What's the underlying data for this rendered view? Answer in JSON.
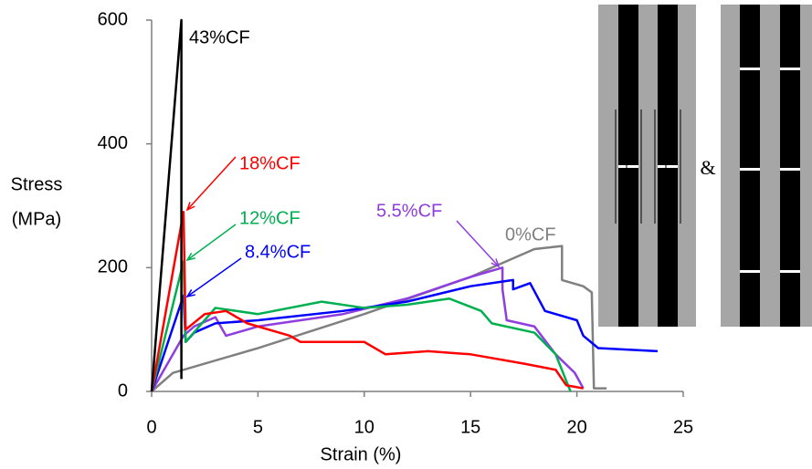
{
  "chart_data": {
    "type": "line",
    "x_label": "Strain (%)",
    "y_label_lines": [
      "Stress",
      "(MPa)"
    ],
    "inset_separator": "&",
    "xlim": [
      0,
      25
    ],
    "xticks": [
      0,
      5,
      10,
      15,
      20,
      25
    ],
    "ylim": [
      0,
      600
    ],
    "yticks": [
      0,
      200,
      400,
      600
    ],
    "grid": false,
    "series": [
      {
        "name": "43%CF",
        "color": "#000000",
        "x": [
          0,
          1.4,
          1.4
        ],
        "values": [
          0,
          600,
          20
        ]
      },
      {
        "name": "18%CF",
        "color": "#ff0000",
        "x": [
          0,
          1.5,
          1.6,
          2.5,
          3.5,
          4.5,
          6.5,
          7,
          10,
          11,
          13,
          15,
          17.5,
          19,
          19.5,
          20.3
        ],
        "values": [
          0,
          290,
          100,
          125,
          130,
          110,
          90,
          80,
          80,
          60,
          65,
          60,
          45,
          35,
          10,
          5
        ]
      },
      {
        "name": "12%CF",
        "color": "#00b050",
        "x": [
          0,
          1.5,
          1.6,
          3,
          5,
          8,
          10,
          12,
          14,
          15.5,
          16,
          18,
          19,
          19.7
        ],
        "values": [
          0,
          210,
          80,
          135,
          125,
          145,
          135,
          140,
          150,
          130,
          110,
          95,
          60,
          0
        ]
      },
      {
        "name": "8.4%CF",
        "color": "#0000ff",
        "x": [
          0,
          1.5,
          1.6,
          2,
          3,
          5,
          9,
          12,
          15,
          17,
          17,
          17.8,
          18.5,
          20,
          20.3,
          21,
          23.8
        ],
        "values": [
          0,
          155,
          80,
          95,
          110,
          115,
          130,
          145,
          170,
          180,
          165,
          175,
          130,
          115,
          90,
          70,
          65
        ]
      },
      {
        "name": "5.5%CF",
        "color": "#8f3de0",
        "x": [
          0,
          1.5,
          2,
          3,
          3.5,
          5,
          7,
          9,
          12,
          15,
          16.5,
          16.5,
          16.7,
          18,
          19,
          19.9,
          20.3
        ],
        "values": [
          0,
          90,
          105,
          120,
          90,
          105,
          115,
          125,
          150,
          185,
          200,
          165,
          115,
          105,
          60,
          30,
          5
        ]
      },
      {
        "name": "0%CF",
        "color": "#808080",
        "x": [
          0,
          1,
          5,
          10,
          15,
          18,
          19.3,
          19.3,
          20.3,
          20.7,
          20.8,
          21.4
        ],
        "values": [
          0,
          30,
          70,
          125,
          185,
          230,
          235,
          180,
          170,
          160,
          5,
          5
        ]
      }
    ]
  }
}
